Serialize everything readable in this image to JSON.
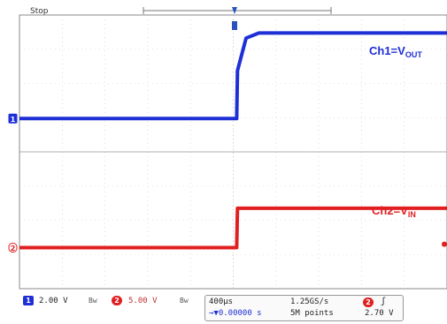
{
  "status": "Stop",
  "colors": {
    "ch1": "#1e2fd6",
    "ch2": "#e02020",
    "grid": "#c8c8c8",
    "frame": "#888888"
  },
  "chart_data": {
    "type": "line",
    "title": "",
    "xlabel": "",
    "ylabel": "",
    "series": [
      {
        "name": "Ch1=V_OUT",
        "label_main": "Ch1=V",
        "label_sub": "OUT",
        "x_div": [
          0,
          5.08,
          5.1,
          5.3,
          5.6,
          10
        ],
        "y_div": [
          0,
          0,
          1.4,
          2.35,
          2.5,
          2.5
        ]
      },
      {
        "name": "Ch2=V_IN",
        "label_main": "Ch2=V",
        "label_sub": "IN",
        "x_div": [
          0,
          5.08,
          5.1,
          10
        ],
        "y_div": [
          0,
          0,
          1.15,
          1.15
        ]
      }
    ]
  },
  "bottom": {
    "ch1_num": "1",
    "ch1_scale": "2.00 V",
    "ch1_bw": "Bw",
    "ch2_num": "2",
    "ch2_scale": "5.00 V",
    "ch2_bw": "Bw",
    "timebase": "400µs",
    "position": "→▼0.00000 s",
    "sample_rate": "1.25GS/s",
    "record_length": "5M points",
    "trig_ch": "2",
    "trig_slope": "ʃ",
    "trig_level": "2.70 V"
  }
}
